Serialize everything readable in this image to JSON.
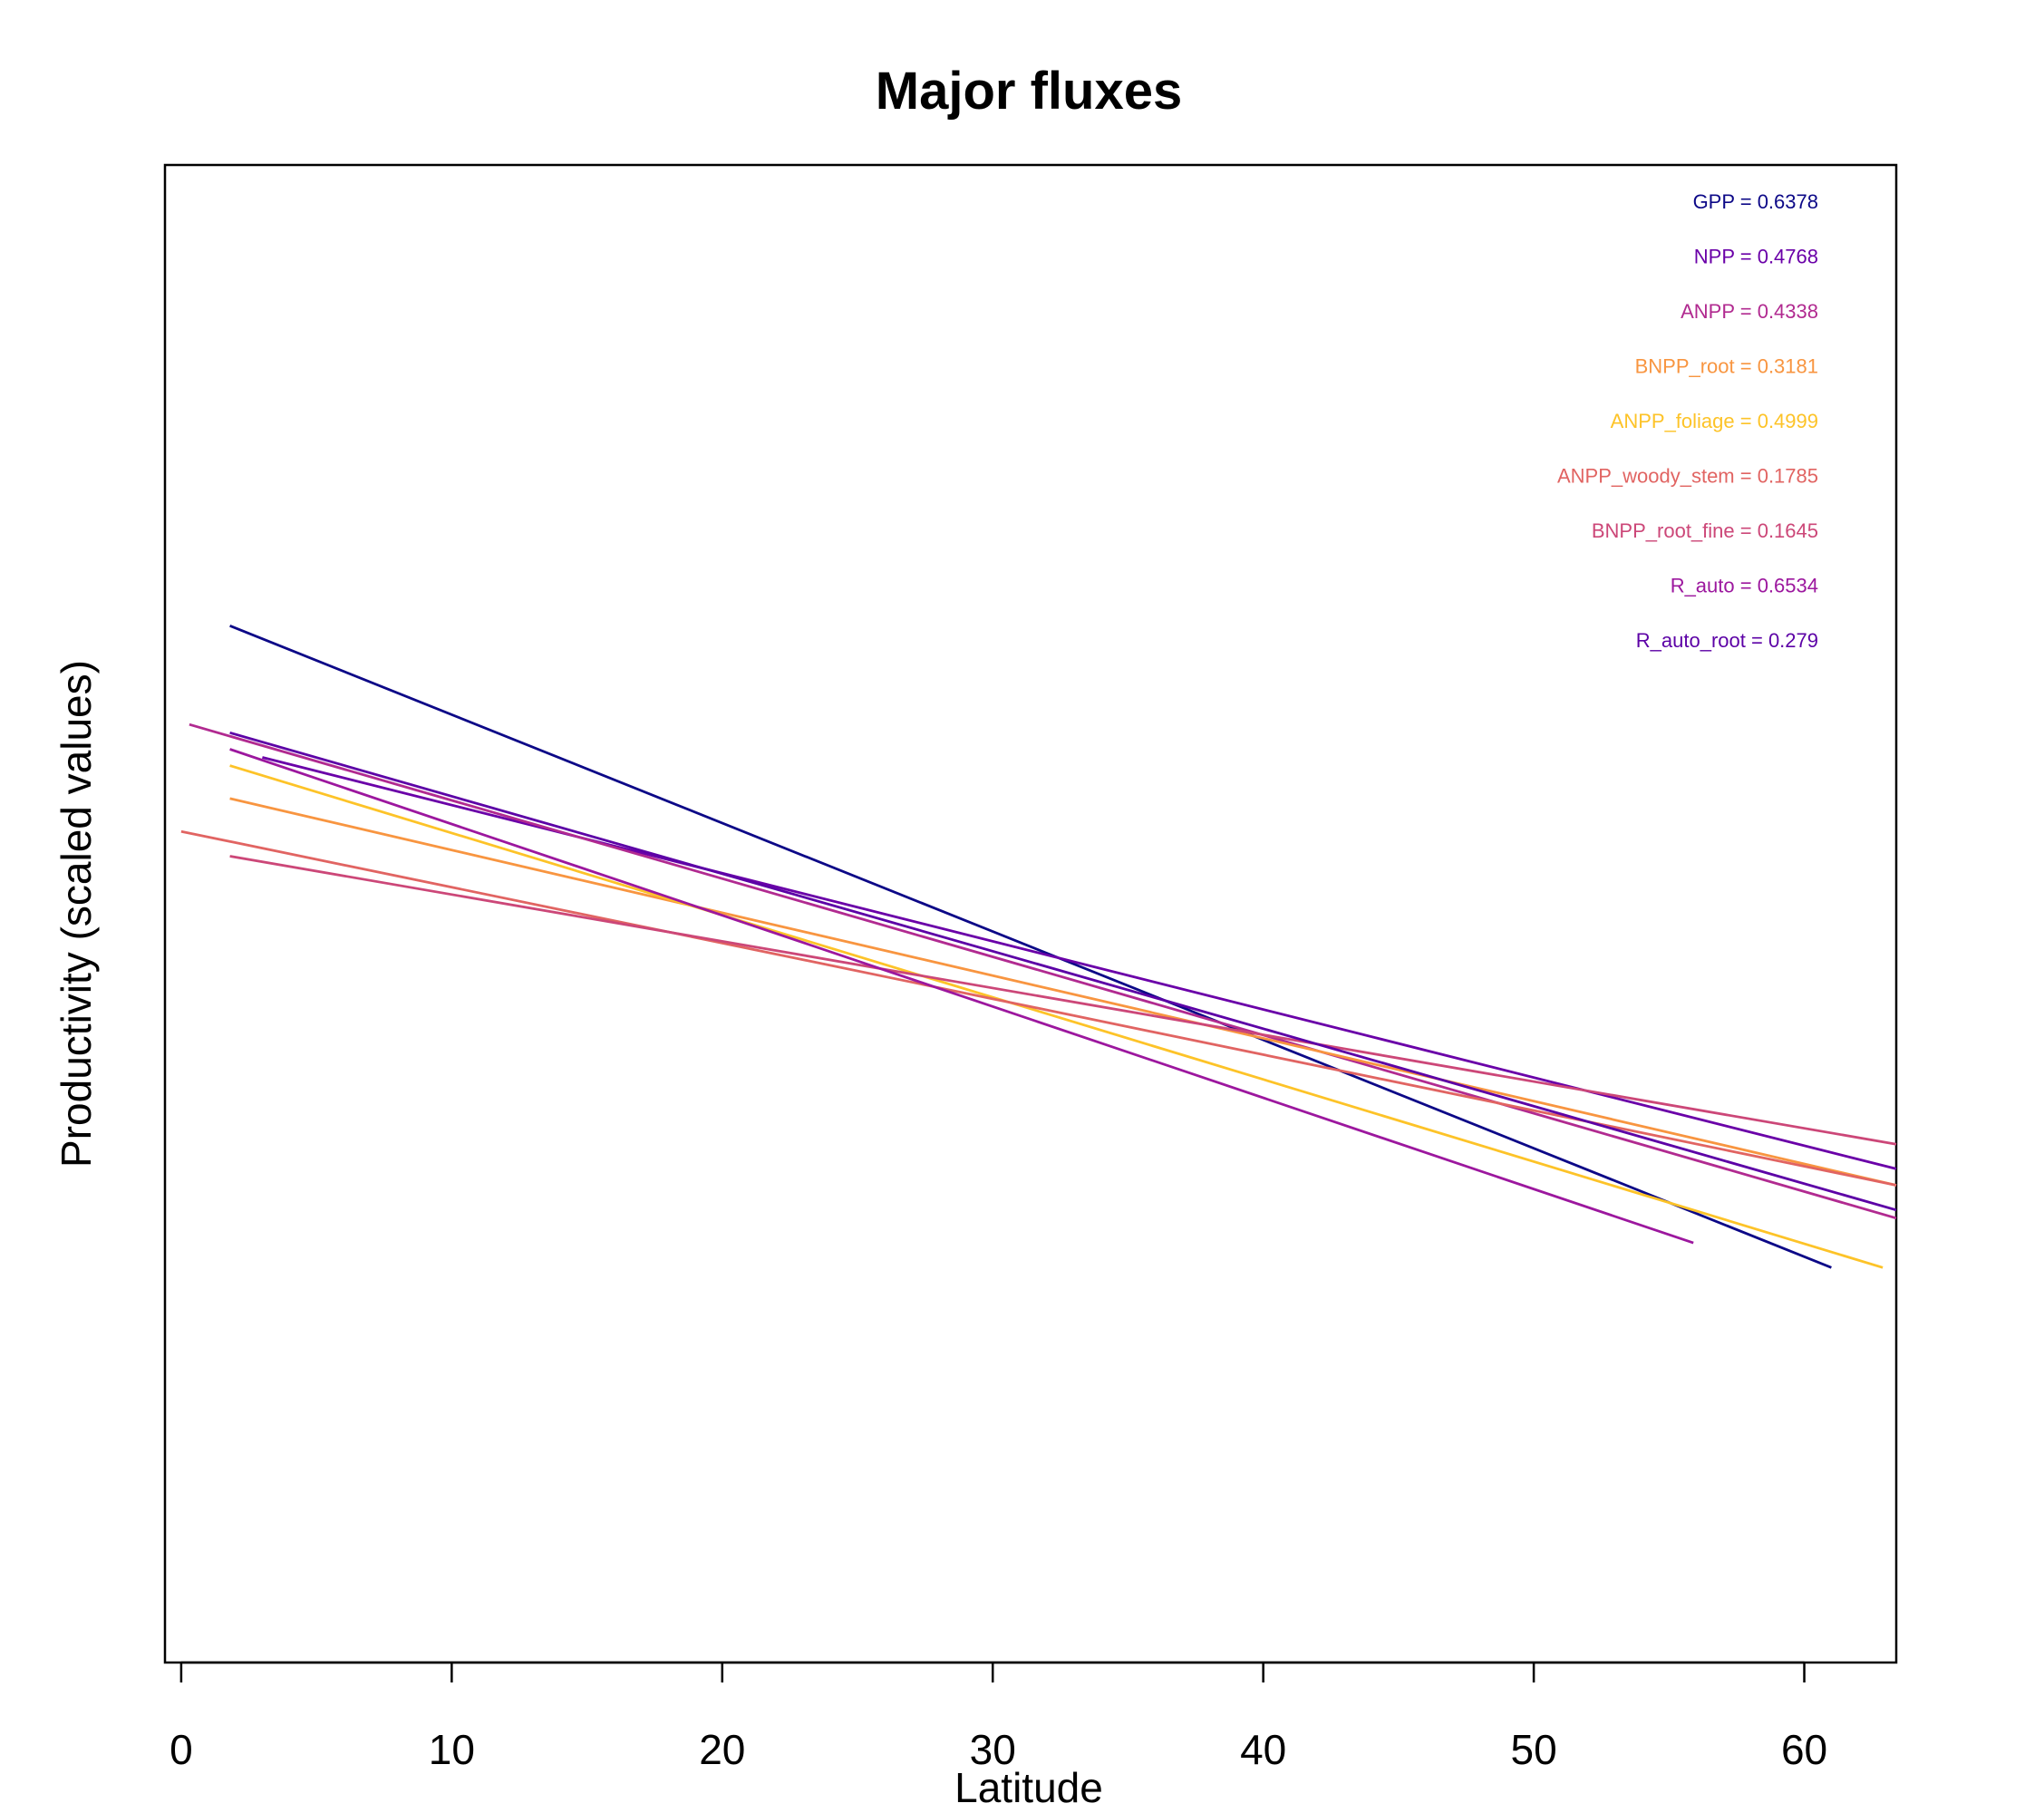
{
  "chart_data": {
    "type": "line",
    "title": "Major fluxes",
    "xlabel": "Latitude",
    "ylabel": "Productivity (scaled values)",
    "xlim": [
      -0.6,
      63.4
    ],
    "ylim": [
      -5.2,
      3.9
    ],
    "xticks": [
      "0",
      "10",
      "20",
      "30",
      "40",
      "50",
      "60"
    ],
    "xtick_values": [
      0,
      10,
      20,
      30,
      40,
      50,
      60
    ],
    "show_y_ticks": false,
    "grid": false,
    "legend_position": "top-right",
    "series": [
      {
        "name": "GPP",
        "label": "GPP  =  0.6378",
        "color": "#0c0887",
        "x": [
          1.8,
          61.0
        ],
        "y": [
          1.1,
          -2.8
        ]
      },
      {
        "name": "NPP",
        "label": "NPP  =  0.4768",
        "color": "#6a00a8",
        "x": [
          3.0,
          63.4
        ],
        "y": [
          0.3,
          -2.2
        ]
      },
      {
        "name": "ANPP",
        "label": "ANPP  =  0.4338",
        "color": "#b12a90",
        "x": [
          0.3,
          63.4
        ],
        "y": [
          0.5,
          -2.5
        ]
      },
      {
        "name": "BNPP_root",
        "label": "BNPP_root  =  0.3181",
        "color": "#f89540",
        "x": [
          1.8,
          63.4
        ],
        "y": [
          0.05,
          -2.3
        ]
      },
      {
        "name": "ANPP_foliage",
        "label": "ANPP_foliage  =  0.4999",
        "color": "#fdc328",
        "x": [
          1.8,
          62.9
        ],
        "y": [
          0.25,
          -2.8
        ]
      },
      {
        "name": "ANPP_woody_stem",
        "label": "ANPP_woody_stem  =  0.1785",
        "color": "#e16462",
        "x": [
          0.0,
          63.4
        ],
        "y": [
          -0.15,
          -2.3
        ]
      },
      {
        "name": "BNPP_root_fine",
        "label": "BNPP_root_fine  =  0.1645",
        "color": "#cc4778",
        "x": [
          1.8,
          63.4
        ],
        "y": [
          -0.3,
          -2.05
        ]
      },
      {
        "name": "R_auto",
        "label": "R_auto  =  0.6534",
        "color": "#9c179e",
        "x": [
          1.8,
          55.9
        ],
        "y": [
          0.35,
          -2.65
        ]
      },
      {
        "name": "R_auto_root",
        "label": "R_auto_root  =  0.279",
        "color": "#5c01a6",
        "x": [
          1.8,
          63.4
        ],
        "y": [
          0.45,
          -2.45
        ]
      }
    ]
  }
}
